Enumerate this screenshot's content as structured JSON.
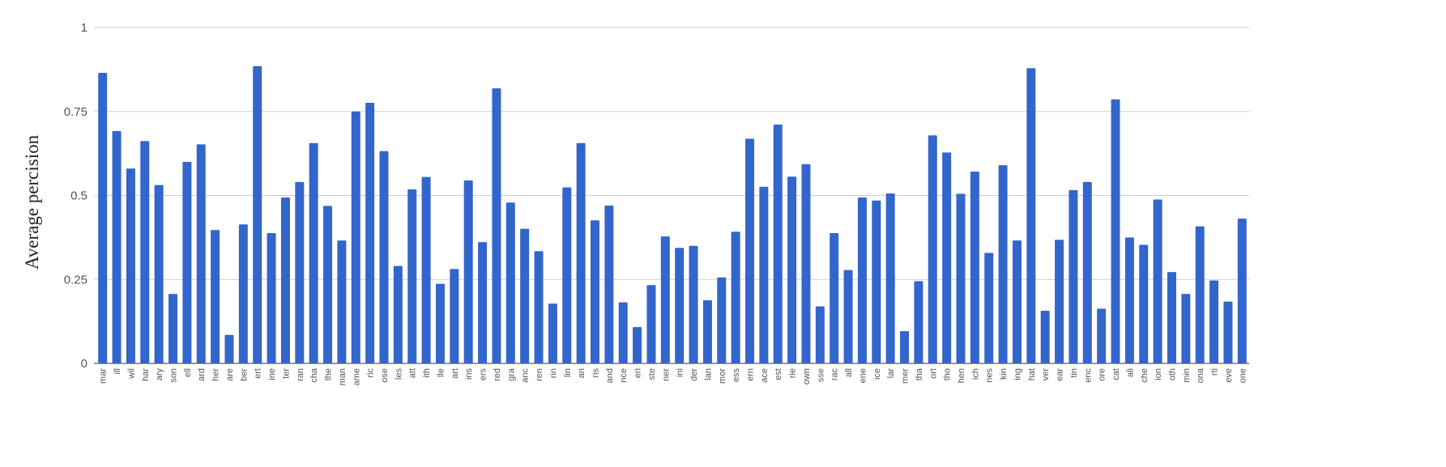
{
  "chart_data": {
    "type": "bar",
    "title": "",
    "xlabel": "",
    "ylabel": "Average percision",
    "ylim": [
      0,
      1
    ],
    "yticks": [
      0,
      0.25,
      0.5,
      0.75,
      1
    ],
    "ytick_labels": [
      "0",
      "0.25",
      "0.5",
      "0.75",
      "1"
    ],
    "grid": true,
    "legend": "none",
    "bar_color": "#3366cc",
    "categories": [
      "mar",
      "ill",
      "wil",
      "har",
      "ary",
      "son",
      "ell",
      "ard",
      "her",
      "are",
      "ber",
      "ert",
      "ine",
      "ter",
      "ran",
      "cha",
      "the",
      "man",
      "ame",
      "ric",
      "ose",
      "les",
      "att",
      "ith",
      "lle",
      "art",
      "ins",
      "ers",
      "red",
      "gra",
      "anc",
      "ren",
      "rin",
      "lin",
      "ari",
      "ris",
      "and",
      "nce",
      "eri",
      "ste",
      "ner",
      "ini",
      "der",
      "lan",
      "mor",
      "ess",
      "ern",
      "ace",
      "est",
      "rie",
      "own",
      "sse",
      "rac",
      "all",
      "ene",
      "ice",
      "lar",
      "mer",
      "tha",
      "ort",
      "tho",
      "hen",
      "ich",
      "nes",
      "kin",
      "ing",
      "hat",
      "ver",
      "ear",
      "tin",
      "enc",
      "ore",
      "cat",
      "ali",
      "che",
      "ion",
      "oth",
      "min",
      "ona",
      "rti",
      "eve",
      "one"
    ],
    "values": [
      0.865,
      0.692,
      0.58,
      0.662,
      0.531,
      0.207,
      0.6,
      0.652,
      0.397,
      0.085,
      0.414,
      0.885,
      0.388,
      0.494,
      0.54,
      0.656,
      0.469,
      0.366,
      0.75,
      0.776,
      0.632,
      0.29,
      0.518,
      0.555,
      0.237,
      0.281,
      0.545,
      0.361,
      0.819,
      0.479,
      0.401,
      0.334,
      0.178,
      0.524,
      0.656,
      0.426,
      0.47,
      0.182,
      0.108,
      0.233,
      0.378,
      0.344,
      0.35,
      0.188,
      0.256,
      0.392,
      0.669,
      0.526,
      0.711,
      0.556,
      0.593,
      0.17,
      0.388,
      0.278,
      0.494,
      0.485,
      0.506,
      0.096,
      0.245,
      0.679,
      0.628,
      0.505,
      0.571,
      0.329,
      0.59,
      0.366,
      0.879,
      0.157,
      0.368,
      0.516,
      0.54,
      0.163,
      0.786,
      0.375,
      0.353,
      0.488,
      0.272,
      0.207,
      0.408,
      0.247,
      0.184,
      0.431
    ]
  }
}
